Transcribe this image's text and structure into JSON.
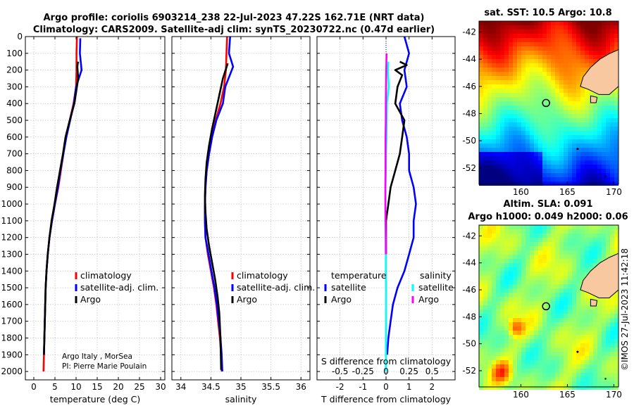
{
  "titles": {
    "line1": "Argo profile: coriolis 6903214_238 22-Jul-2023 47.22S 162.71E (NRT data)",
    "line2": "Climatology: CARS2009. Satellite-adj clim: synTS_20230722.nc (0.47d earlier)"
  },
  "credit": {
    "line1": "Argo Italy , MorSea",
    "line2": "PI: Pierre Marie Poulain"
  },
  "watermark": "©IMOS 27-Jul-2023 11:42:18",
  "colors": {
    "climatology": "#ff0000",
    "satellite": "#0000ff",
    "argo": "#000000",
    "sat_salinity": "#00ffff",
    "argo_salinity": "#ff00ff",
    "land": "#f8c8a0"
  },
  "chart_data": [
    {
      "type": "line",
      "xlabel": "temperature (deg C)",
      "ylabel": "",
      "xlim": [
        -2,
        31
      ],
      "ylim": [
        2050,
        0
      ],
      "xticks": [
        "0",
        "5",
        "10",
        "15",
        "20",
        "25",
        "30"
      ],
      "xtick_values": [
        0,
        5,
        10,
        15,
        20,
        25,
        30
      ],
      "yticks": [
        "0",
        "100",
        "200",
        "300",
        "400",
        "500",
        "600",
        "700",
        "800",
        "900",
        "1000",
        "1100",
        "1200",
        "1300",
        "1400",
        "1500",
        "1600",
        "1700",
        "1800",
        "1900",
        "2000"
      ],
      "ytick_values": [
        0,
        100,
        200,
        300,
        400,
        500,
        600,
        700,
        800,
        900,
        1000,
        1100,
        1200,
        1300,
        1400,
        1500,
        1600,
        1700,
        1800,
        1900,
        2000
      ],
      "legend": [
        "climatology",
        "satellite-adj. clim.",
        "Argo"
      ],
      "legend_position": "center-right",
      "series": [
        {
          "name": "climatology",
          "color": "#ff0000",
          "x": [
            10.2,
            10.1,
            10.1,
            10.0,
            9.4,
            8.5,
            7.6,
            7.0,
            6.4,
            5.8,
            5.0,
            4.3,
            3.7,
            3.3,
            3.0,
            2.8,
            2.7,
            2.6,
            2.5,
            2.4,
            2.3
          ],
          "y": [
            0,
            100,
            200,
            300,
            400,
            500,
            600,
            700,
            800,
            900,
            1000,
            1100,
            1200,
            1300,
            1400,
            1500,
            1600,
            1700,
            1800,
            1900,
            2000
          ]
        },
        {
          "name": "satellite-adj. clim.",
          "color": "#0000ff",
          "x": [
            11.0,
            10.9,
            11.3,
            10.0,
            9.5,
            8.6,
            7.7,
            7.0,
            6.3,
            5.7,
            5.0,
            4.3,
            3.7,
            3.3,
            3.0,
            2.8,
            2.7,
            2.6,
            2.5,
            2.4
          ],
          "y": [
            10,
            100,
            200,
            300,
            400,
            500,
            600,
            700,
            800,
            900,
            1000,
            1100,
            1200,
            1300,
            1400,
            1500,
            1600,
            1700,
            1800,
            1900
          ]
        },
        {
          "name": "Argo",
          "color": "#000000",
          "x": [
            10.5,
            10.4,
            10.3,
            10.5,
            9.6,
            8.5,
            7.5,
            6.9,
            6.2,
            5.5,
            4.9,
            4.2,
            3.7,
            3.3,
            3.0,
            2.8,
            2.7,
            2.6,
            2.5,
            2.4
          ],
          "y": [
            150,
            160,
            180,
            250,
            400,
            500,
            600,
            700,
            800,
            900,
            1000,
            1100,
            1200,
            1300,
            1400,
            1500,
            1600,
            1700,
            1800,
            1900
          ]
        }
      ]
    },
    {
      "type": "line",
      "xlabel": "salinity",
      "ylabel": "",
      "xlim": [
        33.85,
        36.15
      ],
      "ylim": [
        2050,
        0
      ],
      "xticks": [
        "34",
        "34.5",
        "35",
        "35.5",
        "36"
      ],
      "xtick_values": [
        34,
        34.5,
        35,
        35.5,
        36
      ],
      "legend": [
        "climatology",
        "satellite-adj. clim.",
        "Argo"
      ],
      "legend_position": "center-right",
      "series": [
        {
          "name": "climatology",
          "color": "#ff0000",
          "x": [
            34.77,
            34.76,
            34.75,
            34.72,
            34.66,
            34.58,
            34.52,
            34.47,
            34.43,
            34.41,
            34.4,
            34.4,
            34.41,
            34.45,
            34.5,
            34.55,
            34.59,
            34.62,
            34.65,
            34.67,
            34.68
          ],
          "y": [
            0,
            100,
            200,
            300,
            400,
            500,
            600,
            700,
            800,
            900,
            1000,
            1100,
            1200,
            1300,
            1400,
            1500,
            1600,
            1700,
            1800,
            1900,
            2000
          ]
        },
        {
          "name": "satellite-adj. clim.",
          "color": "#0000ff",
          "x": [
            34.82,
            34.8,
            34.87,
            34.74,
            34.7,
            34.59,
            34.52,
            34.47,
            34.43,
            34.41,
            34.4,
            34.4,
            34.41,
            34.46,
            34.51,
            34.56,
            34.6,
            34.63,
            34.66,
            34.68,
            34.69
          ],
          "y": [
            0,
            100,
            180,
            300,
            400,
            500,
            600,
            700,
            800,
            900,
            1000,
            1100,
            1200,
            1300,
            1400,
            1500,
            1600,
            1700,
            1800,
            1900,
            2000
          ]
        },
        {
          "name": "Argo",
          "color": "#000000",
          "x": [
            34.78,
            34.7,
            34.64,
            34.58,
            34.52,
            34.47,
            34.43,
            34.41,
            34.4,
            34.41,
            34.43,
            34.47,
            34.52,
            34.57,
            34.61,
            34.64,
            34.66,
            34.67
          ],
          "y": [
            160,
            250,
            350,
            450,
            550,
            650,
            750,
            850,
            950,
            1050,
            1150,
            1250,
            1350,
            1450,
            1550,
            1650,
            1800,
            1990
          ]
        }
      ]
    },
    {
      "type": "line",
      "xlabel": "T difference from climatology",
      "ylabel": "",
      "xlim": [
        -3,
        3
      ],
      "ylim": [
        2050,
        0
      ],
      "xticks": [
        "-2",
        "-1",
        "0",
        "1",
        "2"
      ],
      "xtick_values": [
        -2,
        -1,
        0,
        1,
        2
      ],
      "secondary_xlabel": "S difference from climatology",
      "secondary_xticks": [
        "-0.5",
        "-0.25",
        "0",
        "0.25",
        "0.5"
      ],
      "secondary_xtick_values": [
        -0.5,
        -0.25,
        0,
        0.25,
        0.5
      ],
      "secondary_xlim": [
        -0.75,
        0.75
      ],
      "legend_groups": [
        {
          "title": "temperature",
          "entries": [
            "satellite",
            "Argo"
          ],
          "position": "center-left"
        },
        {
          "title": "salinity",
          "entries": [
            "satellite",
            "Argo"
          ],
          "position": "center-right"
        }
      ],
      "series": [
        {
          "name": "satellite",
          "group": "temperature",
          "color": "#0000ff",
          "x": [
            0.8,
            1.0,
            0.8,
            0.9,
            0.6,
            0.7,
            0.9,
            1.0,
            1.0,
            1.2,
            1.3,
            1.2,
            1.2,
            1.0,
            0.8,
            0.5,
            0.3,
            0.2,
            0.1,
            0.05
          ],
          "y": [
            0,
            100,
            200,
            300,
            400,
            500,
            600,
            700,
            800,
            900,
            1000,
            1100,
            1200,
            1300,
            1400,
            1500,
            1600,
            1700,
            1800,
            1900
          ]
        },
        {
          "name": "Argo",
          "group": "temperature",
          "color": "#000000",
          "x": [
            0.6,
            0.9,
            0.4,
            0.7,
            0.5,
            0.4,
            0.8,
            0.7,
            0.6,
            0.4,
            0.2,
            0.1,
            0.0,
            0.0,
            0.0
          ],
          "y": [
            150,
            170,
            200,
            230,
            300,
            400,
            500,
            600,
            700,
            800,
            900,
            1000,
            1100,
            1200,
            1300
          ]
        },
        {
          "name": "satellite",
          "group": "salinity",
          "color": "#00ffff",
          "x": [
            0.1,
            0.08,
            0.12,
            0.04,
            0.03,
            0.02,
            0.0,
            -0.01,
            -0.02,
            -0.02,
            -0.03,
            -0.02,
            -0.01,
            -0.01,
            0.0,
            0.0,
            -0.01
          ],
          "y": [
            150,
            200,
            300,
            400,
            500,
            600,
            700,
            800,
            900,
            1000,
            1100,
            1200,
            1300,
            1400,
            1500,
            1700,
            2000
          ]
        },
        {
          "name": "Argo",
          "group": "salinity",
          "color": "#ff00ff",
          "x": [
            0.02,
            0.01,
            0.0,
            -0.01,
            -0.01,
            -0.02,
            -0.02,
            -0.02,
            -0.03,
            -0.03,
            -0.02,
            -0.01,
            -0.01
          ],
          "y": [
            100,
            200,
            300,
            400,
            500,
            600,
            700,
            800,
            900,
            1000,
            1100,
            1200,
            1300
          ]
        }
      ]
    },
    {
      "type": "heatmap",
      "title": "sat. SST: 10.5 Argo: 10.8",
      "xlim": [
        155.5,
        170.5
      ],
      "ylim": [
        -53.2,
        -41.2
      ],
      "xticks": [
        "160",
        "165",
        "170"
      ],
      "xtick_values": [
        160,
        165,
        170
      ],
      "yticks": [
        "-42",
        "-44",
        "-46",
        "-48",
        "-50",
        "-52"
      ],
      "ytick_values": [
        -42,
        -44,
        -46,
        -48,
        -50,
        -52
      ],
      "marker": {
        "lon": 162.71,
        "lat": -47.22
      },
      "colormap": "jet"
    },
    {
      "type": "heatmap",
      "title": "Altim. SLA: 0.091",
      "subtitle": "Argo h1000: 0.049 h2000: 0.06",
      "xlim": [
        155.5,
        170.5
      ],
      "ylim": [
        -53.2,
        -41.2
      ],
      "xticks": [
        "160",
        "165",
        "170"
      ],
      "xtick_values": [
        160,
        165,
        170
      ],
      "yticks": [
        "-42",
        "-44",
        "-46",
        "-48",
        "-50",
        "-52"
      ],
      "ytick_values": [
        -42,
        -44,
        -46,
        -48,
        -50,
        -52
      ],
      "marker": {
        "lon": 162.71,
        "lat": -47.22
      },
      "colormap": "jet"
    }
  ]
}
